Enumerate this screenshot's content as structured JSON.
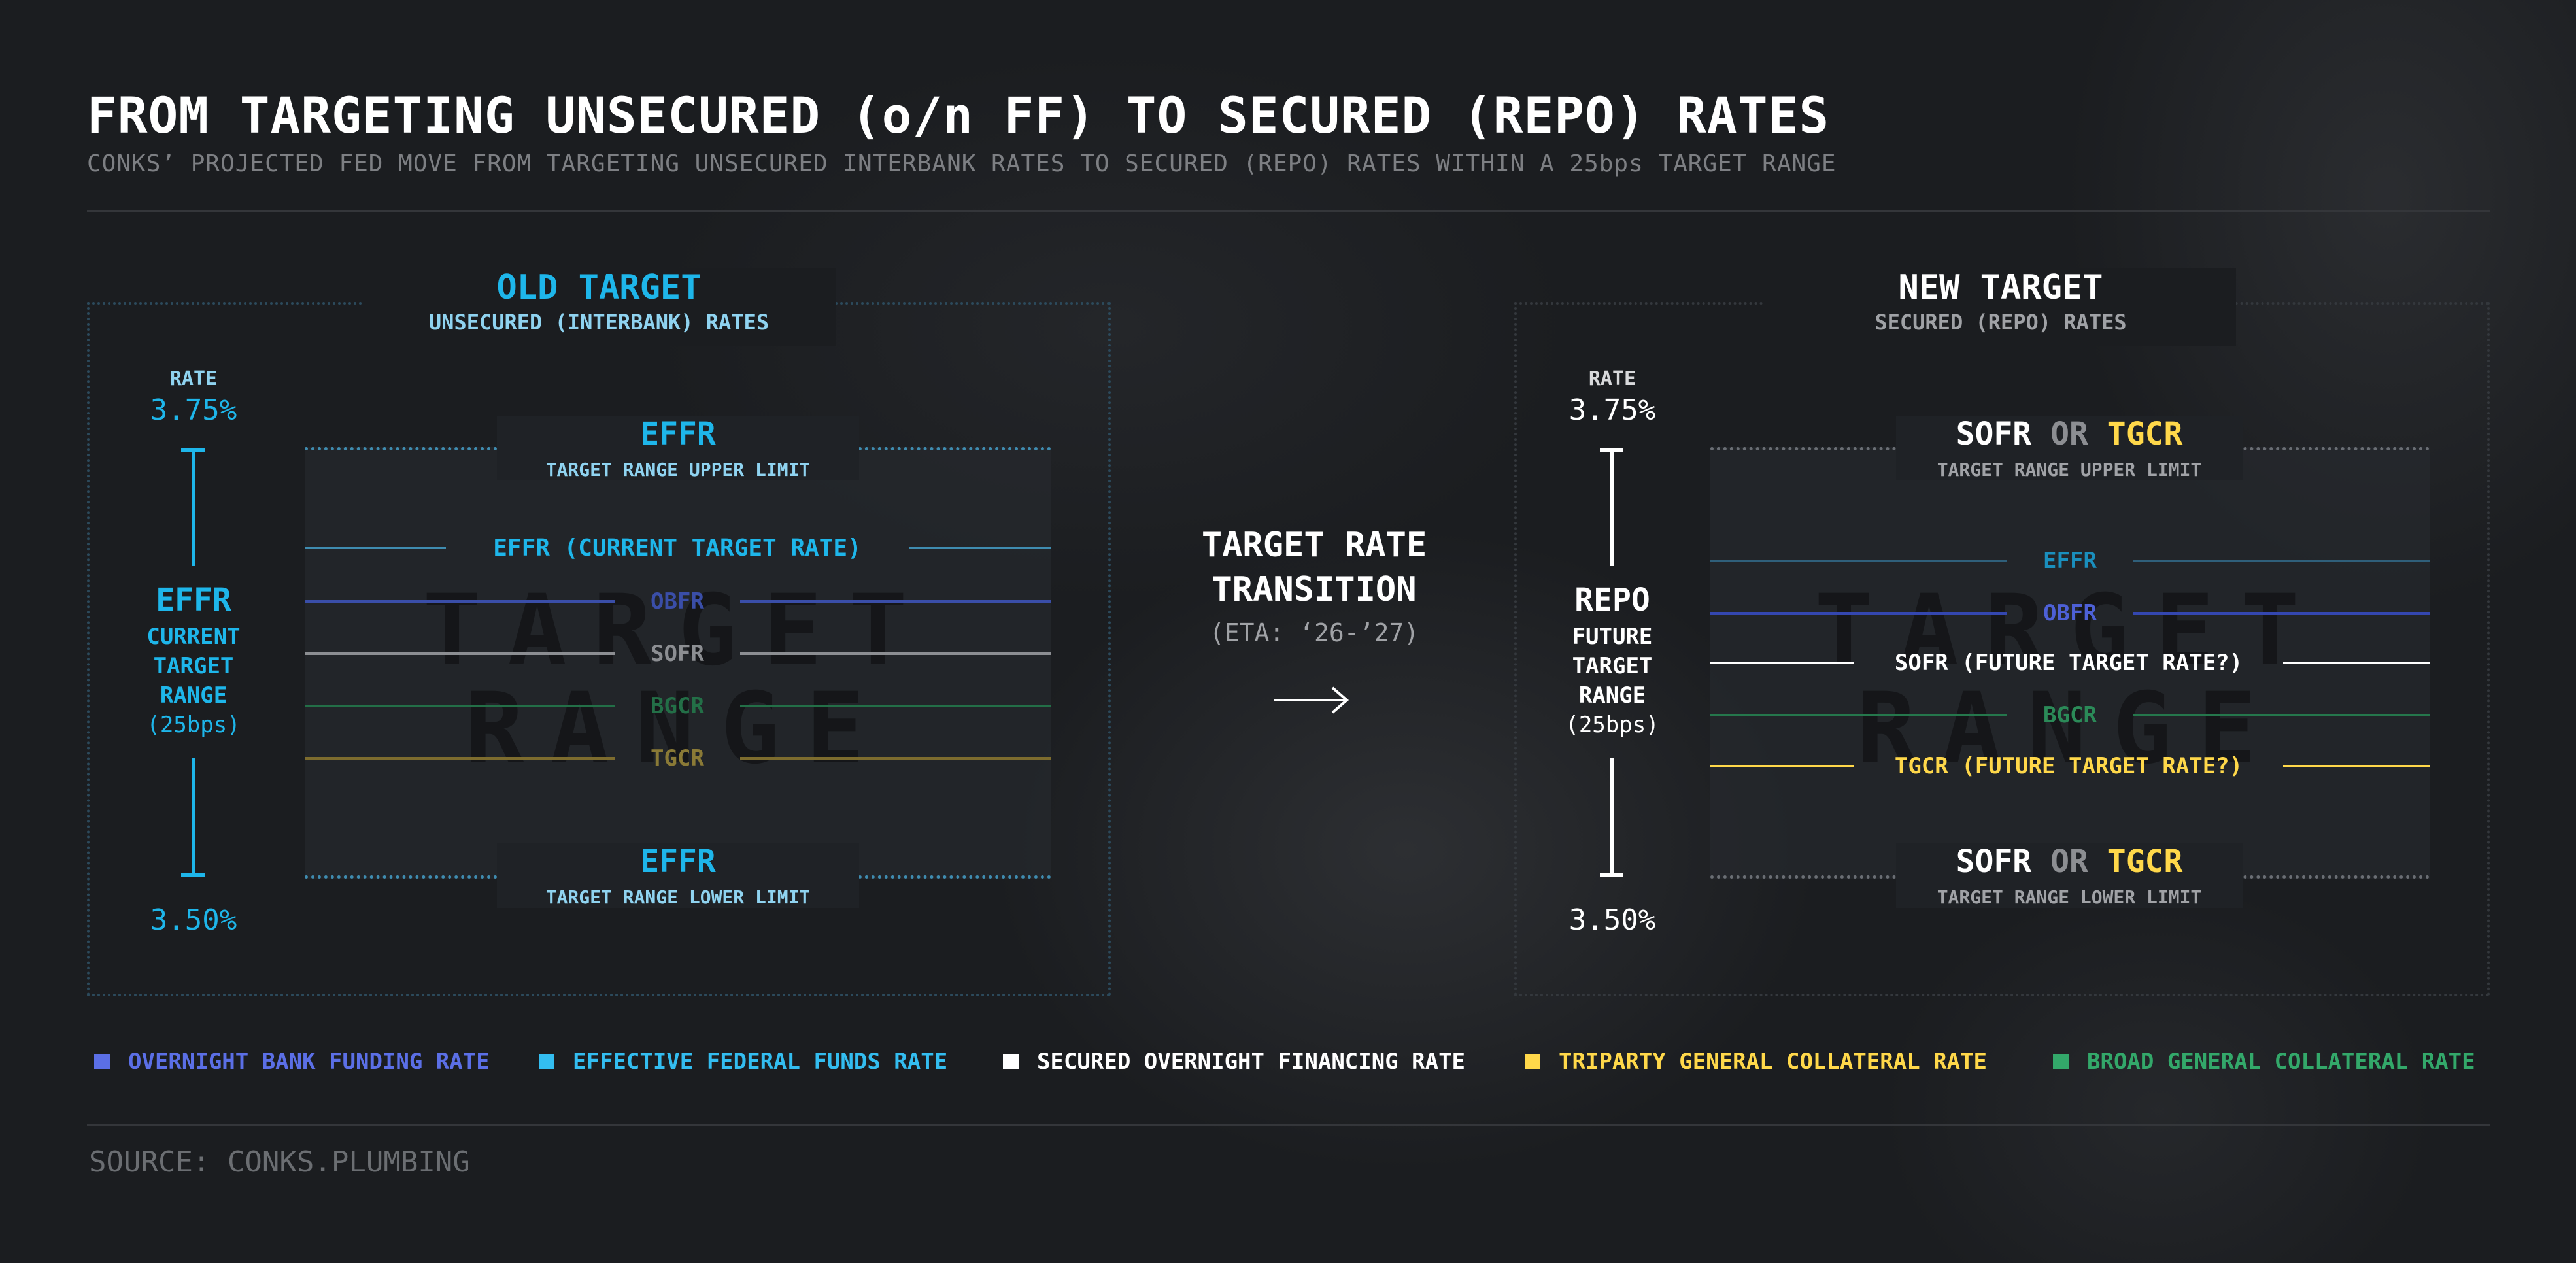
{
  "header": {
    "title": "FROM TARGETING UNSECURED (o/n FF) TO SECURED (REPO) RATES",
    "subtitle": "CONKS’ PROJECTED FED MOVE FROM TARGETING UNSECURED INTERBANK RATES TO SECURED (REPO) RATES WITHIN A 25bps TARGET RANGE"
  },
  "colors": {
    "effr": "#1eb6ea",
    "obfr": "#4a5fd0",
    "sofr": "#ffffff",
    "tgcr": "#ffd84a",
    "bgcr": "#2e9a5e"
  },
  "old": {
    "title": "OLD TARGET",
    "subtitle": "UNSECURED (INTERBANK) RATES",
    "rate_label": "RATE",
    "rate_top": "3.75%",
    "rate_bottom": "3.50%",
    "axis_main": "EFFR",
    "axis_line1": "CURRENT",
    "axis_line2": "TARGET",
    "axis_line3": "RANGE",
    "axis_line4": "(25bps)",
    "upper_name": "EFFR",
    "upper_caption": "TARGET RANGE UPPER LIMIT",
    "lower_name": "EFFR",
    "lower_caption": "TARGET RANGE LOWER LIMIT",
    "watermark_1": "TARGET",
    "watermark_2": "RANGE",
    "lines": {
      "effr": "EFFR (CURRENT TARGET RATE)",
      "obfr": "OBFR",
      "sofr": "SOFR",
      "bgcr": "BGCR",
      "tgcr": "TGCR"
    }
  },
  "transition": {
    "line1": "TARGET RATE",
    "line2": "TRANSITION",
    "eta": "(ETA: ‘26-’27)",
    "arrow": "→"
  },
  "new": {
    "title": "NEW TARGET",
    "subtitle": "SECURED (REPO) RATES",
    "rate_label": "RATE",
    "rate_top": "3.75%",
    "rate_bottom": "3.50%",
    "axis_main": "REPO",
    "axis_line1": "FUTURE",
    "axis_line2": "TARGET",
    "axis_line3": "RANGE",
    "axis_line4": "(25bps)",
    "upper_sofr": "SOFR",
    "upper_or": "OR",
    "upper_tgcr": "TGCR",
    "upper_caption": "TARGET RANGE UPPER LIMIT",
    "lower_sofr": "SOFR",
    "lower_or": "OR",
    "lower_tgcr": "TGCR",
    "lower_caption": "TARGET RANGE LOWER LIMIT",
    "watermark_1": "TARGET",
    "watermark_2": "RANGE",
    "lines": {
      "effr": "EFFR",
      "obfr": "OBFR",
      "sofr": "SOFR (FUTURE TARGET RATE?)",
      "bgcr": "BGCR",
      "tgcr": "TGCR (FUTURE TARGET RATE?)"
    }
  },
  "legend": [
    {
      "label": "OVERNIGHT BANK FUNDING RATE",
      "color": "#5b6fe6"
    },
    {
      "label": "EFFECTIVE FEDERAL FUNDS RATE",
      "color": "#33bdf0"
    },
    {
      "label": "SECURED OVERNIGHT FINANCING RATE",
      "color": "#ffffff"
    },
    {
      "label": "TRIPARTY GENERAL COLLATERAL RATE",
      "color": "#ffd84a"
    },
    {
      "label": "BROAD GENERAL COLLATERAL RATE",
      "color": "#33a86a"
    }
  ],
  "source": "SOURCE: CONKS.PLUMBING"
}
